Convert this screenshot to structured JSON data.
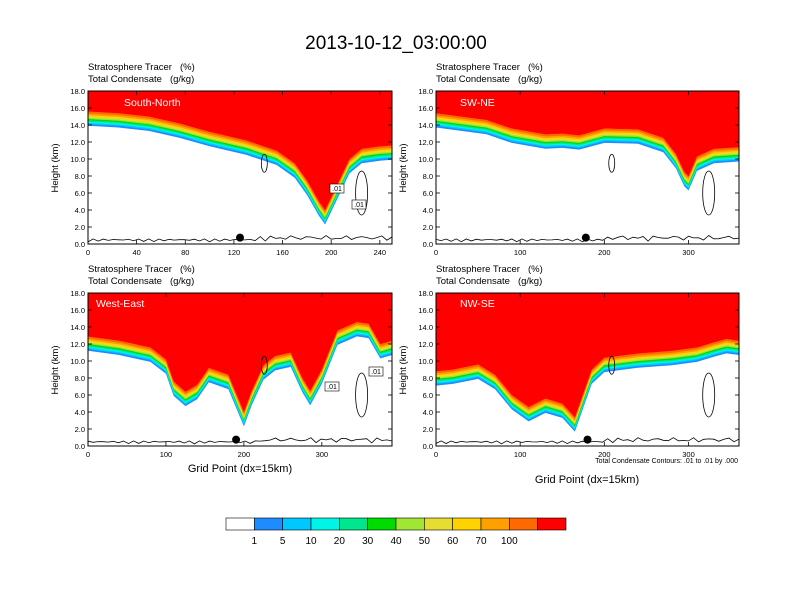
{
  "title": "2013-10-12_03:00:00",
  "colors": {
    "bins": [
      "#ffffff",
      "#1e8cff",
      "#00c8ff",
      "#00f5e6",
      "#00e68c",
      "#00dc00",
      "#a0e632",
      "#e6dc32",
      "#ffd200",
      "#ffa000",
      "#ff6a00",
      "#ff0000"
    ],
    "contour": "#000000",
    "text": "#000000"
  },
  "chart_data": [
    {
      "type": "heatmap",
      "panel": "South-North",
      "header_tracer": "Stratosphere Tracer",
      "tracer_units": "(%)",
      "header_condensate": "Total Condensate",
      "condensate_units": "(g/kg)",
      "ylabel": "Height (km)",
      "xlabel": "",
      "ylim": [
        0,
        18
      ],
      "xlim": [
        0,
        250
      ],
      "yticks": [
        "0.0",
        "2.0",
        "4.0",
        "6.0",
        "8.0",
        "10.0",
        "12.0",
        "14.0",
        "16.0",
        "18.0"
      ],
      "xticks": [
        "0",
        "40",
        "80",
        "120",
        "160",
        "200",
        "240"
      ],
      "contour_labels": [
        ".01",
        ".01"
      ],
      "marker_x": 125,
      "tracer_base_km": [
        [
          0,
          15.6
        ],
        [
          25,
          15.4
        ],
        [
          50,
          15.0
        ],
        [
          75,
          14.2
        ],
        [
          100,
          13.2
        ],
        [
          130,
          12.2
        ],
        [
          155,
          11.0
        ],
        [
          170,
          9.5
        ],
        [
          180,
          7.5
        ],
        [
          190,
          5.0
        ],
        [
          195,
          4.0
        ],
        [
          205,
          7.0
        ],
        [
          215,
          10.0
        ],
        [
          225,
          11.2
        ],
        [
          240,
          11.5
        ],
        [
          250,
          11.6
        ]
      ]
    },
    {
      "type": "heatmap",
      "panel": "SW-NE",
      "header_tracer": "Stratosphere Tracer",
      "tracer_units": "(%)",
      "header_condensate": "Total Condensate",
      "condensate_units": "(g/kg)",
      "ylabel": "Height (km)",
      "xlabel": "",
      "ylim": [
        0,
        18
      ],
      "xlim": [
        0,
        360
      ],
      "yticks": [
        "0.0",
        "2.0",
        "4.0",
        "6.0",
        "8.0",
        "10.0",
        "12.0",
        "14.0",
        "16.0",
        "18.0"
      ],
      "xticks": [
        "0",
        "100",
        "200",
        "300"
      ],
      "contour_labels": [],
      "marker_x": 178,
      "tracer_base_km": [
        [
          0,
          15.4
        ],
        [
          60,
          14.6
        ],
        [
          90,
          13.6
        ],
        [
          130,
          12.9
        ],
        [
          150,
          13.0
        ],
        [
          170,
          12.8
        ],
        [
          200,
          13.6
        ],
        [
          240,
          13.5
        ],
        [
          270,
          12.5
        ],
        [
          285,
          10.6
        ],
        [
          295,
          8.5
        ],
        [
          300,
          8.0
        ],
        [
          310,
          10.3
        ],
        [
          330,
          11.2
        ],
        [
          360,
          11.4
        ]
      ]
    },
    {
      "type": "heatmap",
      "panel": "West-East",
      "header_tracer": "Stratosphere Tracer",
      "tracer_units": "(%)",
      "header_condensate": "Total Condensate",
      "condensate_units": "(g/kg)",
      "ylabel": "Height (km)",
      "xlabel": "Grid Point (dx=15km)",
      "ylim": [
        0,
        18
      ],
      "xlim": [
        0,
        390
      ],
      "yticks": [
        "0.0",
        "2.0",
        "4.0",
        "6.0",
        "8.0",
        "10.0",
        "12.0",
        "14.0",
        "16.0",
        "18.0"
      ],
      "xticks": [
        "0",
        "100",
        "200",
        "300"
      ],
      "contour_labels": [
        ".01",
        ".01"
      ],
      "marker_x": 190,
      "tracer_base_km": [
        [
          0,
          12.9
        ],
        [
          40,
          12.4
        ],
        [
          80,
          11.6
        ],
        [
          100,
          10.2
        ],
        [
          110,
          7.6
        ],
        [
          125,
          6.4
        ],
        [
          140,
          7.2
        ],
        [
          155,
          9.2
        ],
        [
          180,
          8.4
        ],
        [
          190,
          6.2
        ],
        [
          200,
          4.0
        ],
        [
          210,
          6.5
        ],
        [
          225,
          9.5
        ],
        [
          240,
          10.6
        ],
        [
          260,
          11.0
        ],
        [
          275,
          8.0
        ],
        [
          285,
          6.5
        ],
        [
          300,
          9.0
        ],
        [
          320,
          13.6
        ],
        [
          345,
          14.6
        ],
        [
          360,
          14.4
        ],
        [
          375,
          12.0
        ],
        [
          390,
          12.4
        ]
      ]
    },
    {
      "type": "heatmap",
      "panel": "NW-SE",
      "header_tracer": "Stratosphere Tracer",
      "tracer_units": "(%)",
      "header_condensate": "Total Condensate",
      "condensate_units": "(g/kg)",
      "ylabel": "Height (km)",
      "xlabel": "Grid Point (dx=15km)",
      "ylim": [
        0,
        18
      ],
      "xlim": [
        0,
        360
      ],
      "yticks": [
        "0.0",
        "2.0",
        "4.0",
        "6.0",
        "8.0",
        "10.0",
        "12.0",
        "14.0",
        "16.0",
        "18.0"
      ],
      "xticks": [
        "0",
        "100",
        "200",
        "300"
      ],
      "contour_labels": [],
      "marker_x": 180,
      "tracer_base_km": [
        [
          0,
          8.8
        ],
        [
          20,
          9.0
        ],
        [
          50,
          9.6
        ],
        [
          70,
          8.4
        ],
        [
          90,
          6.0
        ],
        [
          110,
          4.6
        ],
        [
          130,
          5.6
        ],
        [
          150,
          5.0
        ],
        [
          165,
          3.4
        ],
        [
          175,
          6.2
        ],
        [
          185,
          9.0
        ],
        [
          200,
          10.4
        ],
        [
          240,
          10.9
        ],
        [
          280,
          11.2
        ],
        [
          310,
          11.6
        ],
        [
          330,
          12.2
        ],
        [
          345,
          12.6
        ],
        [
          360,
          12.4
        ]
      ]
    }
  ],
  "colorbar": {
    "labels": [
      "1",
      "5",
      "10",
      "20",
      "30",
      "40",
      "50",
      "60",
      "70",
      "100"
    ]
  },
  "footnote": "Total Condensate Contours: .01 to .01 by .000"
}
